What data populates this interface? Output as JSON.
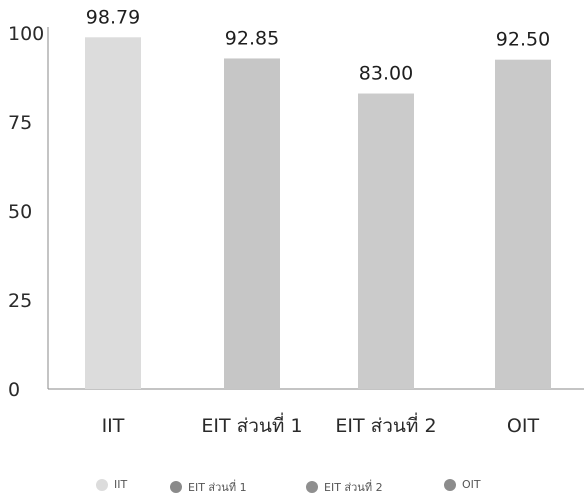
{
  "chart_data": {
    "type": "bar",
    "categories": [
      "IIT",
      "EIT ส่วนที่ 1",
      "EIT ส่วนที่ 2",
      "OIT"
    ],
    "values": [
      98.79,
      92.85,
      83.0,
      92.5
    ],
    "value_labels": [
      "98.79",
      "92.85",
      "83.00",
      "92.50"
    ],
    "colors": [
      "#dcdcdc",
      "#c6c6c6",
      "#cbcbcb",
      "#c9c9c9"
    ],
    "ylim": [
      0,
      100
    ],
    "yticks": [
      0,
      25,
      50,
      75,
      100
    ],
    "title": "",
    "xlabel": "",
    "ylabel": "",
    "grid": false,
    "legend_position": "bottom"
  },
  "legend": {
    "items": [
      {
        "label": "IIT",
        "color": "#dcdcdc"
      },
      {
        "label": "EIT ส่วนที่ 1",
        "color": "#8a8a8a"
      },
      {
        "label": "EIT ส่วนที่ 2",
        "color": "#8f8f8f"
      },
      {
        "label": "OIT",
        "color": "#8c8c8c"
      }
    ]
  }
}
